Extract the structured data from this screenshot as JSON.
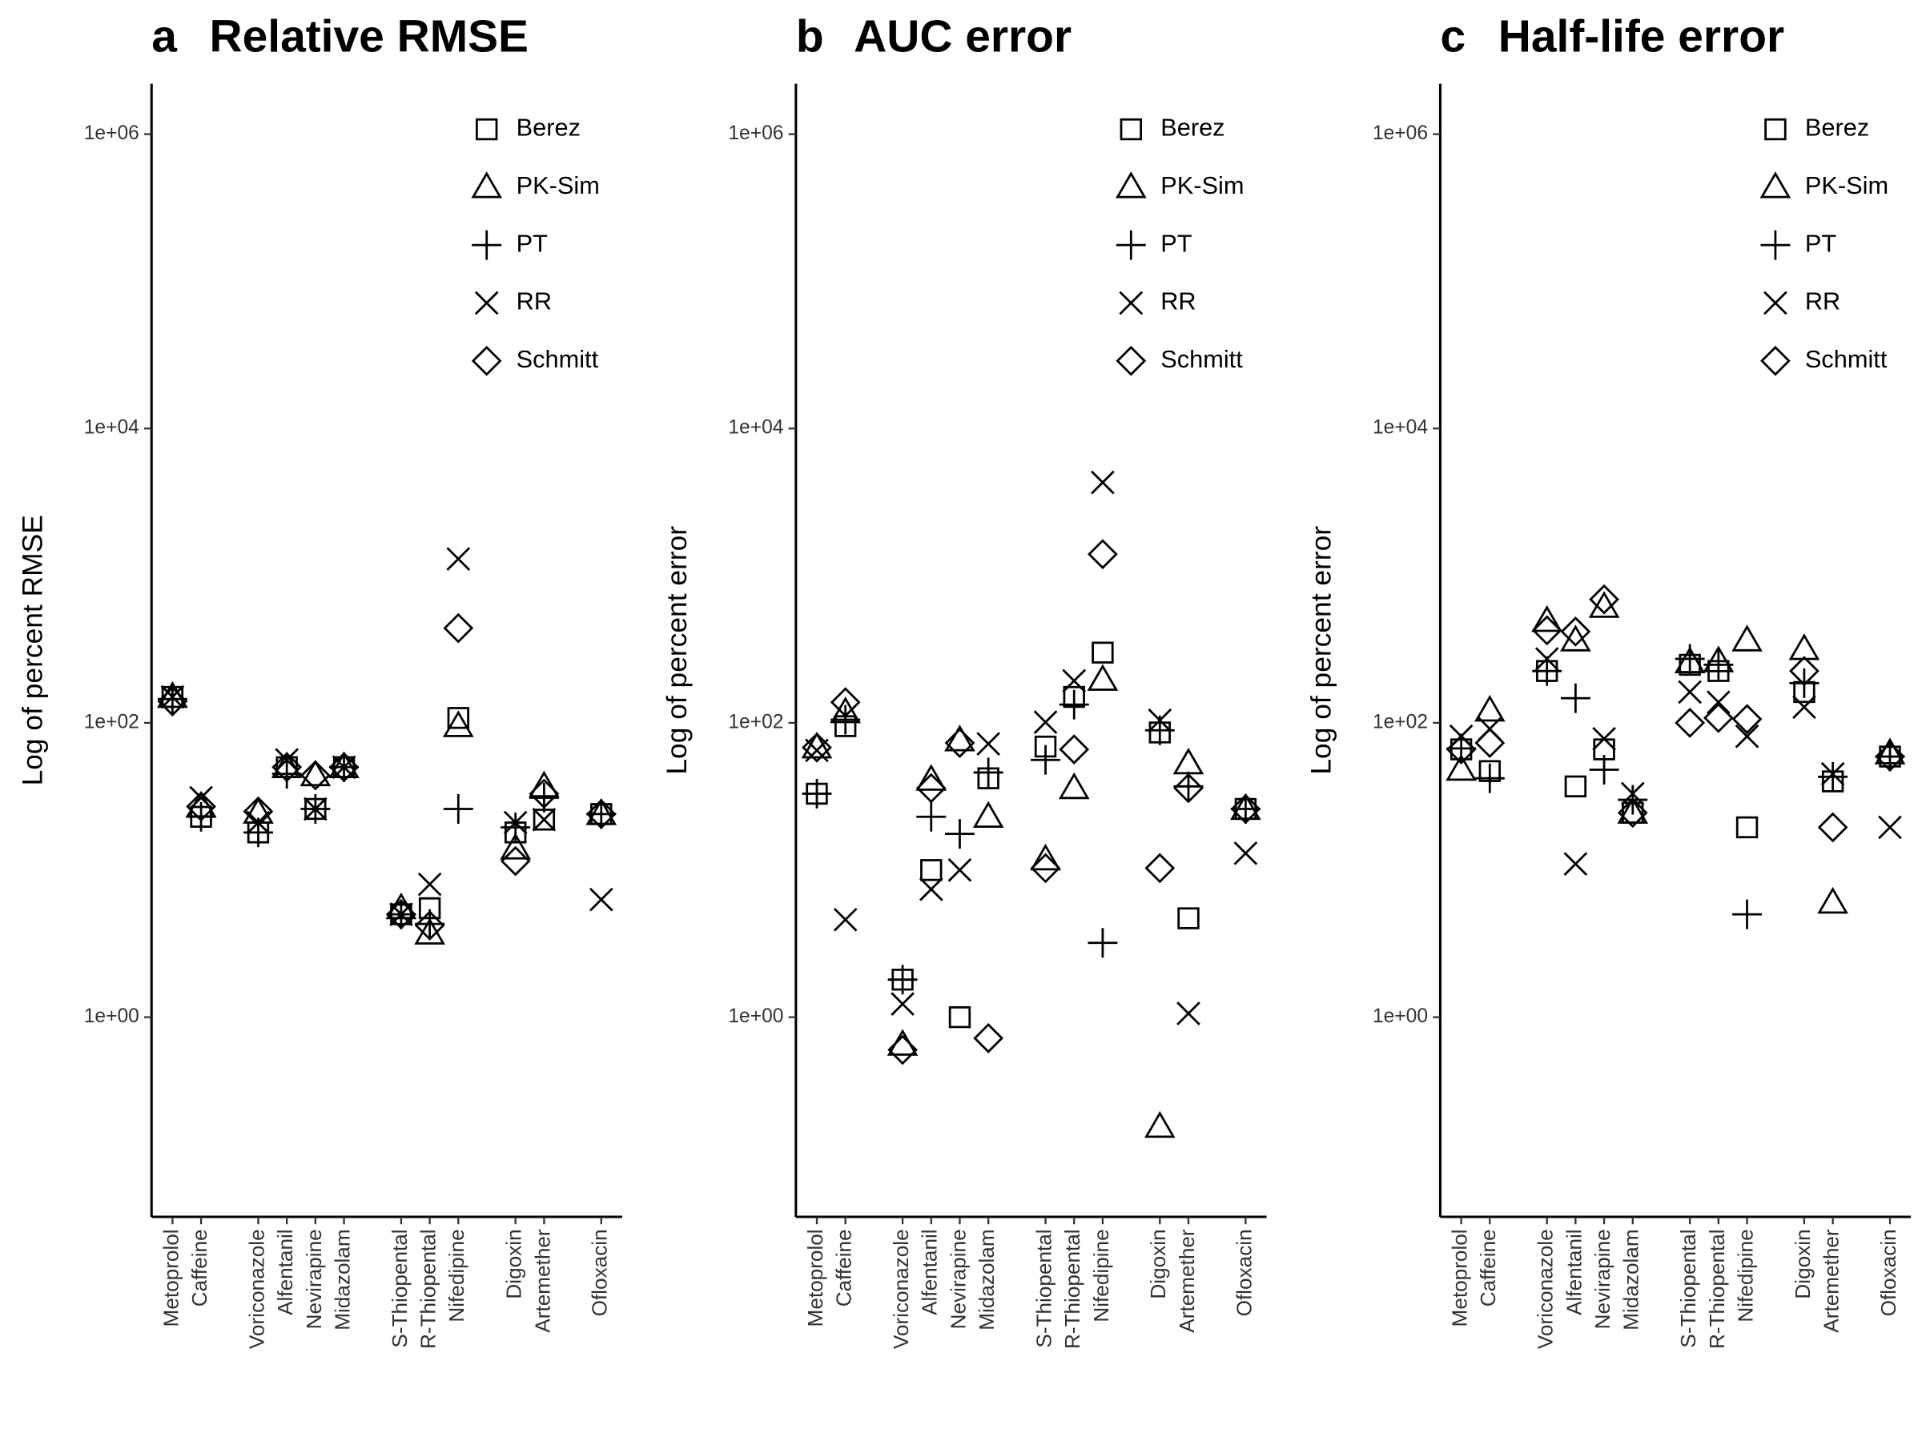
{
  "chart_data": [
    {
      "type": "scatter",
      "panel_label": "a",
      "title": "Relative RMSE",
      "y_label": "Log of percent RMSE",
      "categories": [
        "Metoprolol",
        "Caffeine",
        null,
        "Voriconazole",
        "Alfentanil",
        "Nevirapine",
        "Midazolam",
        null,
        "S-Thiopental",
        "R-Thiopental",
        "Nifedipine",
        null,
        "Digoxin",
        "Artemether",
        null,
        "Ofloxacin"
      ],
      "y_log": true,
      "ylim": [
        0.044,
        2200000
      ],
      "yticks": [
        {
          "value": 1,
          "label": "1e+00"
        },
        {
          "value": 100,
          "label": "1e+02"
        },
        {
          "value": 10000,
          "label": "1e+04"
        },
        {
          "value": 1000000,
          "label": "1e+06"
        }
      ],
      "legend": "top right",
      "series": [
        {
          "name": "Berez",
          "marker": "square",
          "color": "#000000",
          "values": [
            150,
            23,
            null,
            18,
            50,
            26,
            50,
            null,
            5,
            5.5,
            108,
            null,
            18,
            22,
            null,
            24
          ]
        },
        {
          "name": "PK-Sim",
          "marker": "triangle",
          "color": "#000000",
          "values": [
            150,
            27,
            null,
            24.5,
            50,
            44,
            50,
            null,
            5.5,
            3.7,
            95,
            null,
            14,
            37,
            null,
            24
          ]
        },
        {
          "name": "PT",
          "marker": "plus",
          "color": "#000000",
          "values": [
            145,
            23,
            null,
            18,
            45,
            26,
            50,
            null,
            5,
            4.3,
            26,
            null,
            19.5,
            31,
            null,
            24
          ]
        },
        {
          "name": "RR",
          "marker": "x",
          "color": "#000000",
          "values": [
            150,
            31,
            null,
            21,
            56,
            26,
            50,
            null,
            5,
            8,
            1300,
            null,
            21,
            22,
            null,
            6.3
          ]
        },
        {
          "name": "Schmitt",
          "marker": "diamond",
          "color": "#000000",
          "values": [
            140,
            27,
            null,
            25,
            50,
            44,
            50,
            null,
            5,
            4.2,
            440,
            null,
            11.5,
            33,
            null,
            24
          ]
        }
      ]
    },
    {
      "type": "scatter",
      "panel_label": "b",
      "title": "AUC error",
      "y_label": "Log of percent error",
      "categories": [
        "Metoprolol",
        "Caffeine",
        null,
        "Voriconazole",
        "Alfentanil",
        "Nevirapine",
        "Midazolam",
        null,
        "S-Thiopental",
        "R-Thiopental",
        "Nifedipine",
        null,
        "Digoxin",
        "Artemether",
        null,
        "Ofloxacin"
      ],
      "y_log": true,
      "ylim": [
        0.044,
        2200000
      ],
      "yticks": [
        {
          "value": 1,
          "label": "1e+00"
        },
        {
          "value": 100,
          "label": "1e+02"
        },
        {
          "value": 10000,
          "label": "1e+04"
        },
        {
          "value": 1000000,
          "label": "1e+06"
        }
      ],
      "legend": "top right",
      "series": [
        {
          "name": "Berez",
          "marker": "square",
          "color": "#000000",
          "values": [
            33,
            95,
            null,
            1.8,
            10,
            1.0,
            42,
            null,
            69,
            150,
            300,
            null,
            86,
            4.7,
            null,
            26
          ]
        },
        {
          "name": "PK-Sim",
          "marker": "triangle",
          "color": "#000000",
          "values": [
            68,
            118,
            null,
            0.65,
            41,
            76,
            23,
            null,
            11.8,
            36,
            196,
            null,
            0.18,
            53,
            null,
            26
          ]
        },
        {
          "name": "PT",
          "marker": "plus",
          "color": "#000000",
          "values": [
            33,
            105,
            null,
            1.8,
            23,
            17.6,
            46,
            null,
            56,
            133,
            3.2,
            null,
            89,
            37,
            null,
            26
          ]
        },
        {
          "name": "RR",
          "marker": "x",
          "color": "#000000",
          "values": [
            65,
            4.6,
            null,
            1.23,
            7.4,
            10,
            72,
            null,
            101,
            193,
            4300,
            null,
            104,
            1.06,
            null,
            13
          ]
        },
        {
          "name": "Schmitt",
          "marker": "diamond",
          "color": "#000000",
          "values": [
            68,
            138,
            null,
            0.6,
            36,
            73,
            0.72,
            null,
            10.3,
            66,
            1400,
            null,
            10.3,
            36,
            null,
            26
          ]
        }
      ]
    },
    {
      "type": "scatter",
      "panel_label": "c",
      "title": "Half-life error",
      "y_label": "Log of percent error",
      "categories": [
        "Metoprolol",
        "Caffeine",
        null,
        "Voriconazole",
        "Alfentanil",
        "Nevirapine",
        "Midazolam",
        null,
        "S-Thiopental",
        "R-Thiopental",
        "Nifedipine",
        null,
        "Digoxin",
        "Artemether",
        null,
        "Ofloxacin"
      ],
      "y_log": true,
      "ylim": [
        0.044,
        2200000
      ],
      "yticks": [
        {
          "value": 1,
          "label": "1e+00"
        },
        {
          "value": 100,
          "label": "1e+02"
        },
        {
          "value": 10000,
          "label": "1e+04"
        },
        {
          "value": 1000000,
          "label": "1e+06"
        }
      ],
      "legend": "top right",
      "series": [
        {
          "name": "Berez",
          "marker": "square",
          "color": "#000000",
          "values": [
            66,
            47,
            null,
            225,
            37,
            66,
            24.5,
            null,
            248,
            225,
            19.5,
            null,
            162,
            40,
            null,
            59
          ]
        },
        {
          "name": "PK-Sim",
          "marker": "triangle",
          "color": "#000000",
          "values": [
            48,
            121,
            null,
            492,
            363,
            614,
            24.5,
            null,
            258,
            262,
            363,
            null,
            317,
            6.0,
            null,
            62
          ]
        },
        {
          "name": "PT",
          "marker": "plus",
          "color": "#000000",
          "values": [
            67,
            42,
            null,
            225,
            147,
            48,
            30,
            null,
            272,
            248,
            5.0,
            null,
            186,
            43,
            null,
            59
          ]
        },
        {
          "name": "RR",
          "marker": "x",
          "color": "#000000",
          "values": [
            81,
            91,
            null,
            272,
            11,
            78,
            33,
            null,
            162,
            138,
            81,
            null,
            128,
            45,
            null,
            19.5
          ]
        },
        {
          "name": "Schmitt",
          "marker": "diamond",
          "color": "#000000",
          "values": [
            66,
            73,
            null,
            425,
            417,
            690,
            24.5,
            null,
            100,
            108,
            106,
            null,
            225,
            19.5,
            null,
            59
          ]
        }
      ]
    }
  ]
}
